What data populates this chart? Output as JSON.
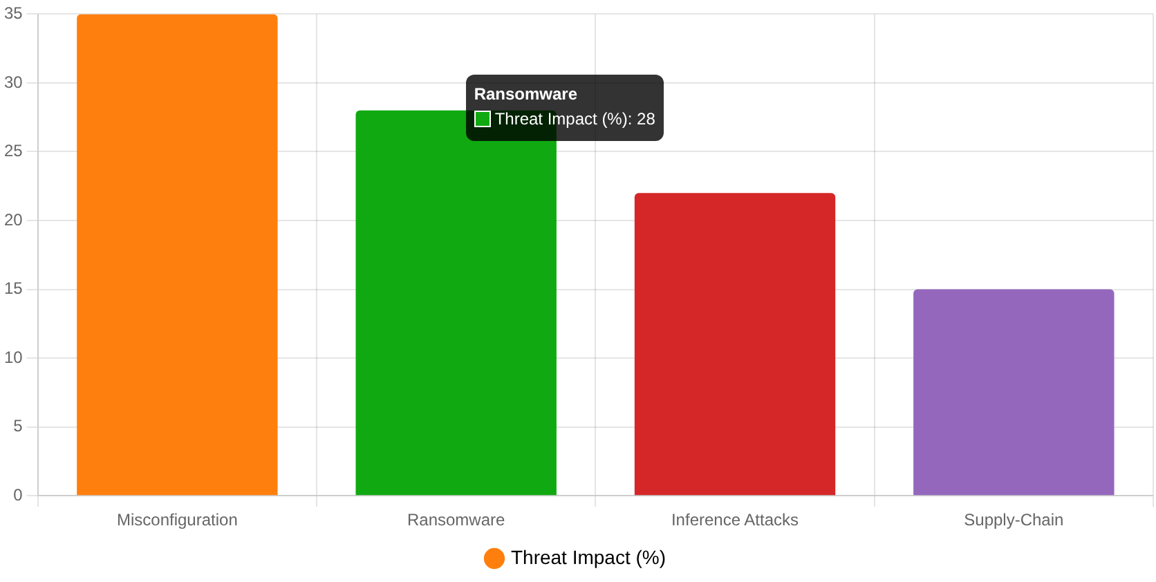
{
  "chart_data": {
    "type": "bar",
    "categories": [
      "Misconfiguration",
      "Ransomware",
      "Inference Attacks",
      "Supply-Chain"
    ],
    "series": [
      {
        "name": "Threat Impact (%)",
        "colors": [
          "#ff7f0e",
          "#10a911",
          "#d62728",
          "#9467bd"
        ],
        "values": [
          35,
          28,
          22,
          15
        ]
      }
    ],
    "ylim": [
      0,
      35
    ],
    "yticks": [
      0,
      5,
      10,
      15,
      20,
      25,
      30,
      35
    ],
    "grid": true,
    "legend": "bottom",
    "annotations": [
      {
        "text": "Ransomware",
        "x": "Ransomware",
        "y": 28
      },
      {
        "text": "Threat Impact (%): 28",
        "x": "Ransomware",
        "y": 28
      }
    ]
  }
}
